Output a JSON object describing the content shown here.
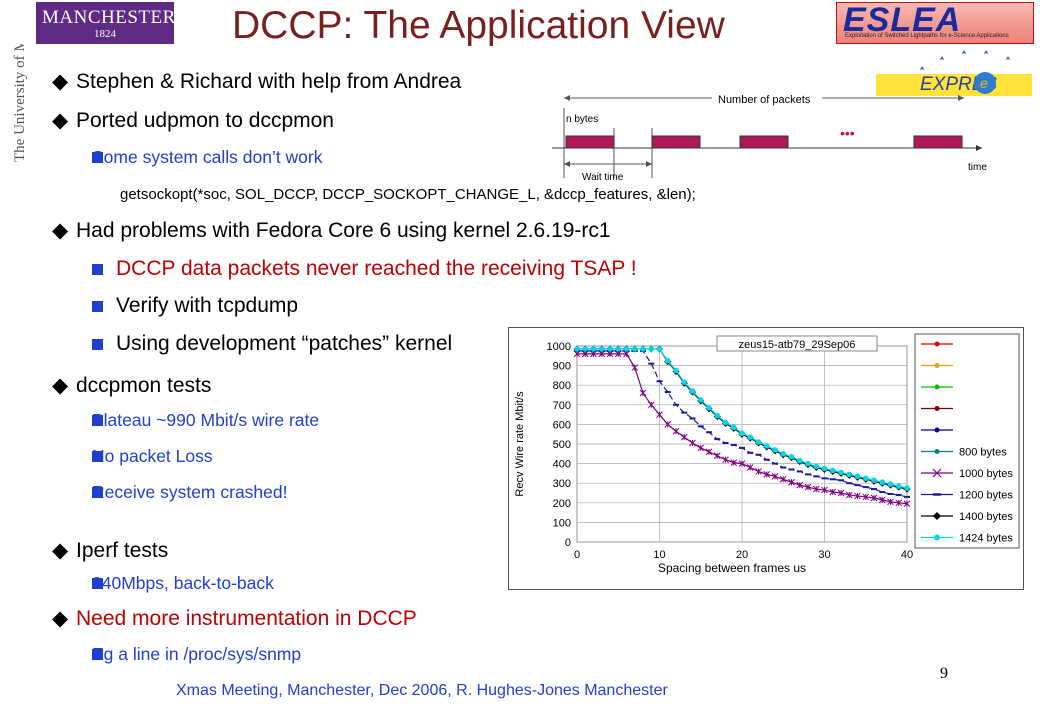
{
  "header": {
    "title": "DCCP: The Application View",
    "manchester": {
      "name": "MANCHESTER",
      "year": "1824",
      "vertical": "The University of Manchester"
    },
    "esleai": {
      "name": "ESLEA",
      "subtitle": "Exploitation of Switched Lightpaths for e-Science Applications"
    },
    "express": {
      "name": "EXPRES"
    }
  },
  "bullets": [
    {
      "text": "Stephen & Richard with help from Andrea"
    },
    {
      "text": "Ported udpmon to dccpmon"
    },
    {
      "text": "Some system calls don’t work"
    },
    {
      "text": "Had problems with Fedora Core 6 using kernel 2.6.19-rc1"
    },
    {
      "text": "DCCP data packets never reached the receiving TSAP !"
    },
    {
      "text": "Verify with tcpdump"
    },
    {
      "text": "Using development “patches” kernel"
    },
    {
      "text": "dccpmon tests"
    },
    {
      "text": "Plateau ~990 Mbit/s wire rate"
    },
    {
      "text": "No packet Loss"
    },
    {
      "text": "Receive system crashed!"
    },
    {
      "text": "Iperf tests"
    },
    {
      "text": "940Mbps, back-to-back"
    },
    {
      "text": "Need more instrumentation in DCCP"
    },
    {
      "text": "Eg a line in /proc/sys/snmp"
    }
  ],
  "code": "getsockopt(*soc, SOL_DCCP, DCCP_SOCKOPT_CHANGE_L, &dccp_features, &len);",
  "diagram": {
    "number_of_packets": "Number of packets",
    "n_bytes": "n bytes",
    "wait_time": "Wait time",
    "time": "time",
    "ellipsis": "•••"
  },
  "chart_data": {
    "type": "line",
    "title": "zeus15-atb79_29Sep06",
    "xlabel": "Spacing between frames us",
    "ylabel": "Recv Wire rate Mbit/s",
    "xlim": [
      0,
      40
    ],
    "ylim": [
      0,
      1000
    ],
    "xticks": [
      0,
      10,
      20,
      30,
      40
    ],
    "yticks": [
      0,
      100,
      200,
      300,
      400,
      500,
      600,
      700,
      800,
      900,
      1000
    ],
    "legend_position": "right",
    "series": [
      {
        "name": "",
        "color": "#e00000",
        "values": []
      },
      {
        "name": "",
        "color": "#f0a000",
        "values": []
      },
      {
        "name": "",
        "color": "#00c000",
        "values": []
      },
      {
        "name": "",
        "color": "#800000",
        "values": []
      },
      {
        "name": "",
        "color": "#000080",
        "values": []
      },
      {
        "name": "800 bytes",
        "color": "#008080",
        "values": []
      },
      {
        "name": "1000 bytes",
        "color": "#800080",
        "marker": "x",
        "x": [
          0,
          1,
          2,
          3,
          4,
          5,
          6,
          7,
          8,
          9,
          10,
          11,
          12,
          13,
          14,
          15,
          16,
          17,
          18,
          19,
          20,
          21,
          22,
          23,
          24,
          25,
          26,
          27,
          28,
          29,
          30,
          31,
          32,
          33,
          34,
          35,
          36,
          37,
          38,
          39,
          40
        ],
        "values": [
          960,
          960,
          960,
          960,
          960,
          960,
          960,
          890,
          760,
          700,
          650,
          600,
          565,
          535,
          505,
          480,
          460,
          440,
          420,
          405,
          400,
          380,
          360,
          345,
          335,
          320,
          305,
          290,
          280,
          270,
          265,
          255,
          250,
          240,
          235,
          230,
          225,
          215,
          205,
          200,
          195
        ]
      },
      {
        "name": "1200 bytes",
        "color": "#1a1aa0",
        "marker": "dash",
        "x": [
          0,
          1,
          2,
          3,
          4,
          5,
          6,
          7,
          8,
          9,
          10,
          11,
          12,
          13,
          14,
          15,
          16,
          17,
          18,
          19,
          20,
          21,
          22,
          23,
          24,
          25,
          26,
          27,
          28,
          29,
          30,
          31,
          32,
          33,
          34,
          35,
          36,
          37,
          38,
          39,
          40
        ],
        "values": [
          975,
          975,
          975,
          975,
          975,
          975,
          975,
          975,
          975,
          910,
          820,
          765,
          700,
          660,
          630,
          590,
          560,
          525,
          505,
          495,
          480,
          455,
          445,
          420,
          400,
          380,
          370,
          360,
          345,
          335,
          325,
          320,
          315,
          300,
          290,
          280,
          270,
          255,
          245,
          240,
          230
        ]
      },
      {
        "name": "1400 bytes",
        "color": "#000000",
        "marker": "diamond",
        "x": [
          0,
          1,
          2,
          3,
          4,
          5,
          6,
          7,
          8,
          9,
          10,
          11,
          12,
          13,
          14,
          15,
          16,
          17,
          18,
          19,
          20,
          21,
          22,
          23,
          24,
          25,
          26,
          27,
          28,
          29,
          30,
          31,
          32,
          33,
          34,
          35,
          36,
          37,
          38,
          39,
          40
        ],
        "values": [
          985,
          985,
          985,
          985,
          985,
          985,
          985,
          985,
          985,
          985,
          985,
          920,
          870,
          810,
          765,
          720,
          680,
          640,
          605,
          580,
          550,
          530,
          505,
          485,
          465,
          445,
          430,
          410,
          395,
          380,
          370,
          360,
          350,
          340,
          330,
          320,
          310,
          300,
          290,
          280,
          270
        ]
      },
      {
        "name": "1424 bytes",
        "color": "#00d8e8",
        "marker": "circle",
        "x": [
          0,
          1,
          2,
          3,
          4,
          5,
          6,
          7,
          8,
          9,
          10,
          11,
          12,
          13,
          14,
          15,
          16,
          17,
          18,
          19,
          20,
          21,
          22,
          23,
          24,
          25,
          26,
          27,
          28,
          29,
          30,
          31,
          32,
          33,
          34,
          35,
          36,
          37,
          38,
          39,
          40
        ],
        "values": [
          985,
          985,
          985,
          985,
          985,
          985,
          985,
          985,
          985,
          985,
          985,
          925,
          875,
          815,
          770,
          725,
          685,
          645,
          610,
          585,
          555,
          535,
          510,
          490,
          470,
          450,
          435,
          415,
          400,
          385,
          375,
          365,
          355,
          345,
          335,
          325,
          315,
          305,
          295,
          285,
          275
        ]
      }
    ]
  },
  "footer": "Xmas Meeting, Manchester, Dec 2006,  R. Hughes-Jones  Manchester",
  "page_number": "9"
}
